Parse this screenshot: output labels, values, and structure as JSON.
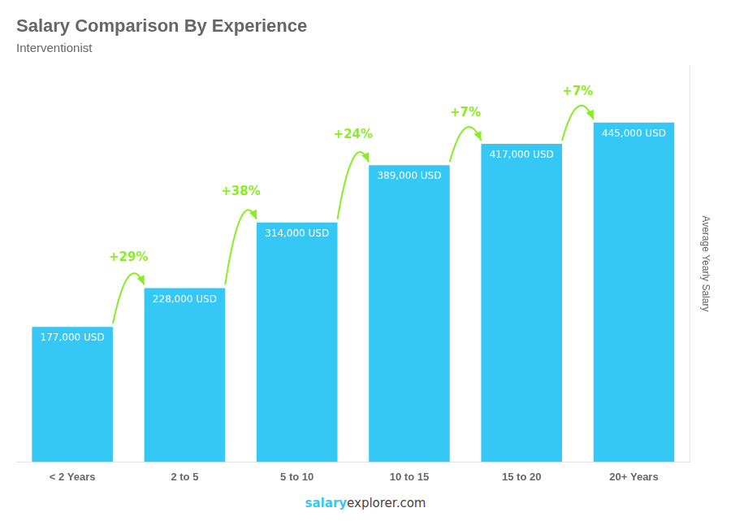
{
  "chart_data": {
    "type": "bar",
    "title": "Salary Comparison By Experience",
    "subtitle": "Interventionist",
    "ylabel": "Average Yearly Salary",
    "categories": [
      "< 2 Years",
      "2 to 5",
      "5 to 10",
      "10 to 15",
      "15 to 20",
      "20+ Years"
    ],
    "values": [
      177000,
      228000,
      314000,
      389000,
      417000,
      445000
    ],
    "value_labels": [
      "177,000 USD",
      "228,000 USD",
      "314,000 USD",
      "389,000 USD",
      "417,000 USD",
      "445,000 USD"
    ],
    "data_labels": true,
    "color": "#35c8f5",
    "ylim": [
      0,
      520000
    ],
    "grid": false,
    "tick_labels": "x",
    "annotations": [
      {
        "text": "+29%",
        "from": "< 2 Years",
        "to": "2 to 5",
        "color": "#88ee22"
      },
      {
        "text": "+38%",
        "from": "2 to 5",
        "to": "5 to 10",
        "color": "#88ee22"
      },
      {
        "text": "+24%",
        "from": "5 to 10",
        "to": "10 to 15",
        "color": "#88ee22"
      },
      {
        "text": "+7%",
        "from": "10 to 15",
        "to": "15 to 20",
        "color": "#88ee22"
      },
      {
        "text": "+7%",
        "from": "15 to 20",
        "to": "20+ Years",
        "color": "#88ee22"
      }
    ],
    "footer": [
      {
        "text": "salary",
        "color": "#35c8f5"
      },
      {
        "text": "explorer.com"
      }
    ]
  }
}
